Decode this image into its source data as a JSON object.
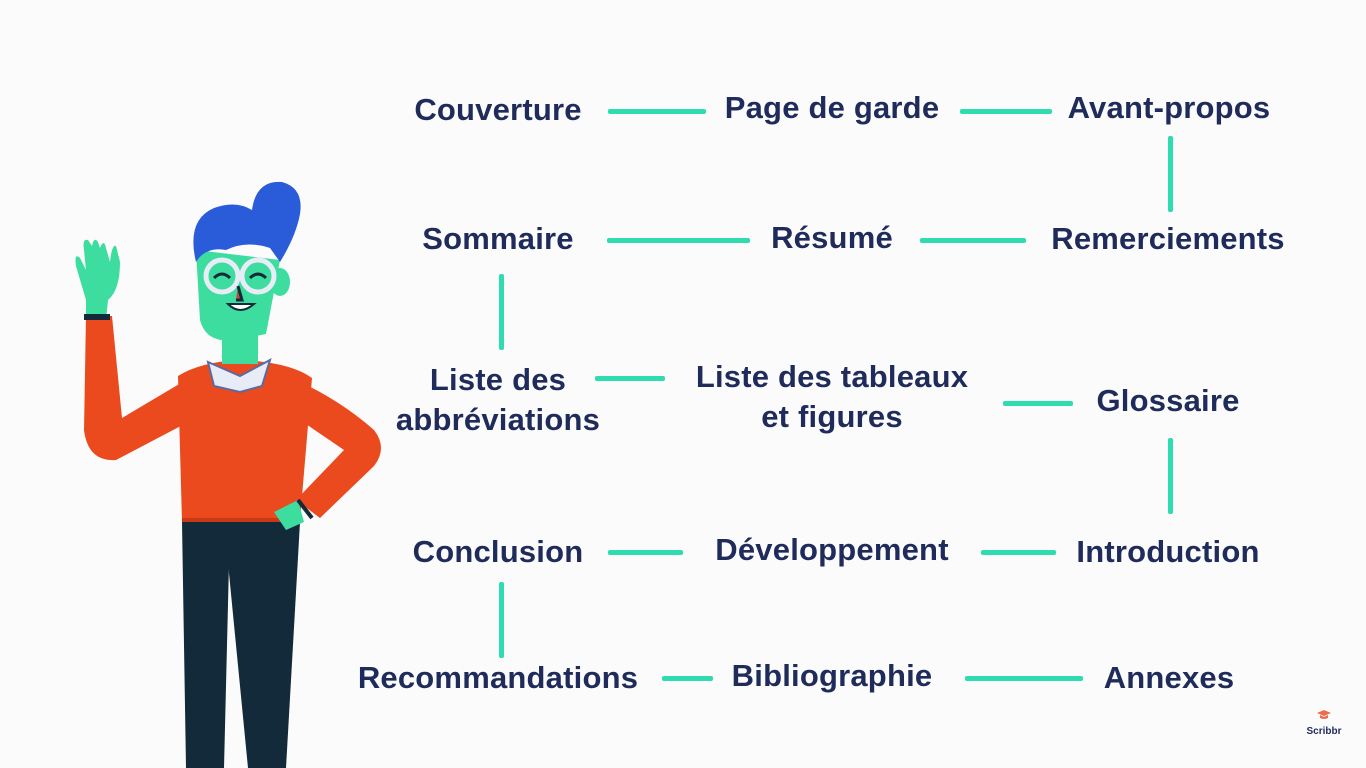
{
  "diagram": {
    "nodes": {
      "couverture": "Couverture",
      "page_de_garde": "Page de garde",
      "avant_propos": "Avant-propos",
      "sommaire": "Sommaire",
      "resume": "Résumé",
      "remerciements": "Remerciements",
      "liste_abbreviations": [
        "Liste des",
        "abbréviations"
      ],
      "liste_tableaux": [
        "Liste des tableaux",
        "et figures"
      ],
      "glossaire": "Glossaire",
      "conclusion": "Conclusion",
      "developpement": "Développement",
      "introduction": "Introduction",
      "recommandations": "Recommandations",
      "bibliographie": "Bibliographie",
      "annexes": "Annexes"
    },
    "colors": {
      "text": "#1f2b5b",
      "connector": "#2fdcb0"
    }
  },
  "brand": {
    "logo_text": "Scribbr",
    "logo_icon": "graduation-cap-icon"
  },
  "illustration": {
    "icon": "waving-man-illustration"
  }
}
